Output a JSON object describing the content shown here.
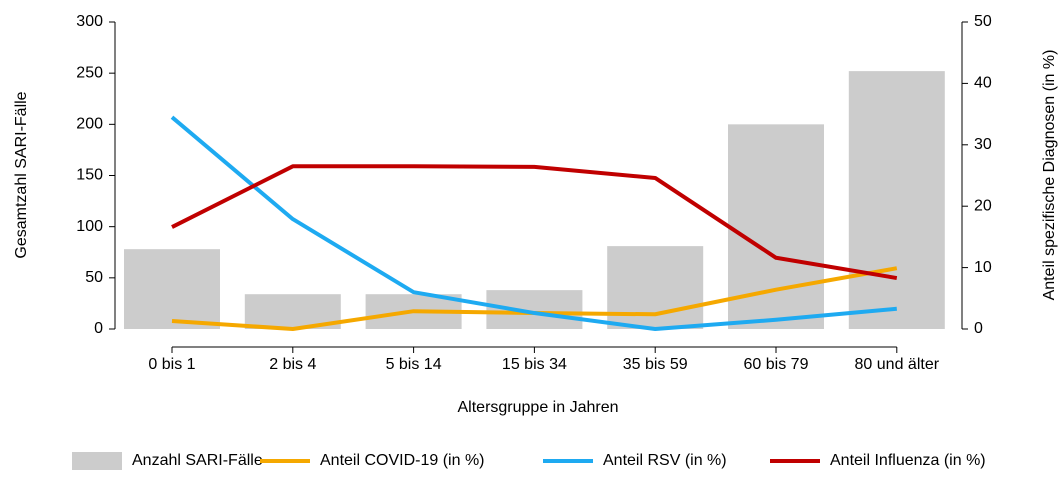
{
  "chart_data": {
    "type": "combo",
    "x_label": "Altersgruppe in Jahren",
    "y_label": "Gesamtzahl SARI-Fälle",
    "y2_label": "Anteil spezifische Diagnosen (in %)",
    "categories": [
      "0 bis 1",
      "2 bis 4",
      "5 bis 14",
      "15 bis 34",
      "35 bis 59",
      "60 bis 79",
      "80 und älter"
    ],
    "series": [
      {
        "name": "Anzahl SARI-Fälle",
        "type": "bar",
        "color": "#cccccc",
        "values": [
          78,
          34,
          34,
          38,
          81,
          200,
          252
        ]
      },
      {
        "name": "Anteil COVID-19 (in %)",
        "type": "line",
        "axis": "y2",
        "color": "#f5a800",
        "values": [
          1.3,
          0,
          2.9,
          2.6,
          2.4,
          6.4,
          9.9
        ]
      },
      {
        "name": "Anteil RSV (in %)",
        "type": "line",
        "axis": "y2",
        "color": "#1eaaf1",
        "values": [
          34.5,
          17.9,
          6.0,
          2.6,
          0,
          1.5,
          3.3
        ]
      },
      {
        "name": "Anteil Influenza (in %)",
        "type": "line",
        "axis": "y2",
        "color": "#c00000",
        "values": [
          16.6,
          26.5,
          26.5,
          26.4,
          24.6,
          11.6,
          8.3
        ]
      }
    ],
    "ylim": [
      0,
      300
    ],
    "yticks": [
      0,
      50,
      100,
      150,
      200,
      250,
      300
    ],
    "y2lim": [
      0,
      50
    ],
    "y2ticks": [
      0,
      10,
      20,
      30,
      40,
      50
    ]
  }
}
